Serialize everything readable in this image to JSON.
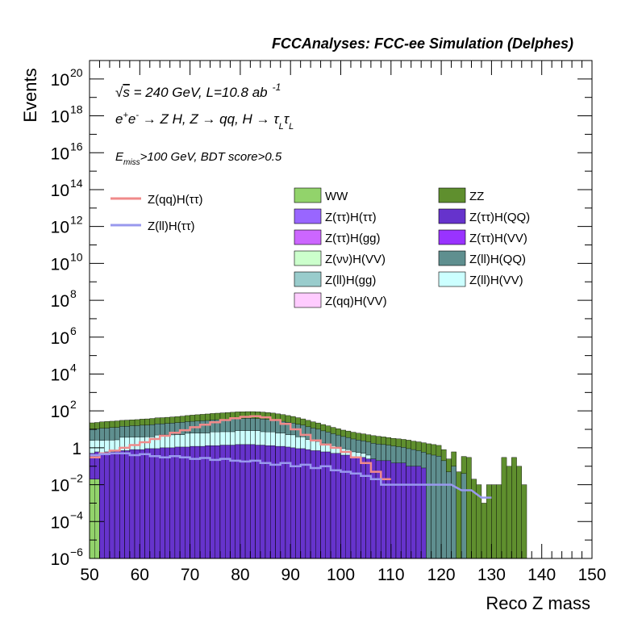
{
  "chart_data": {
    "type": "bar",
    "title": "FCCAnalyses: FCC-ee Simulation (Delphes)",
    "xlabel": "Reco Z mass",
    "ylabel": "Events",
    "xlim": [
      50,
      150
    ],
    "ylim_exp": [
      -6,
      21
    ],
    "log_y": true,
    "grid": false,
    "x_ticks": [
      "50",
      "60",
      "70",
      "80",
      "90",
      "100",
      "110",
      "120",
      "130",
      "140",
      "150"
    ],
    "y_ticks": [
      {
        "exp": -6,
        "base": "10",
        "sup": "−6"
      },
      {
        "exp": -4,
        "base": "10",
        "sup": "−4"
      },
      {
        "exp": -2,
        "base": "10",
        "sup": "−2"
      },
      {
        "exp": 0,
        "base": "1",
        "sup": ""
      },
      {
        "exp": 2,
        "base": "10",
        "sup": "2"
      },
      {
        "exp": 4,
        "base": "10",
        "sup": "4"
      },
      {
        "exp": 6,
        "base": "10",
        "sup": "6"
      },
      {
        "exp": 8,
        "base": "10",
        "sup": "8"
      },
      {
        "exp": 10,
        "base": "10",
        "sup": "10"
      },
      {
        "exp": 12,
        "base": "10",
        "sup": "12"
      },
      {
        "exp": 14,
        "base": "10",
        "sup": "14"
      },
      {
        "exp": 16,
        "base": "10",
        "sup": "16"
      },
      {
        "exp": 18,
        "base": "10",
        "sup": "18"
      },
      {
        "exp": 20,
        "base": "10",
        "sup": "20"
      }
    ],
    "annotations": {
      "line1_prefix": "√",
      "line1_s": "s",
      "line1_rest": " = 240 GeV, L=10.8 ab",
      "line1_sup": "-1",
      "line2_e1": "e",
      "line2_sup1": "+",
      "line2_e2": "e",
      "line2_sup2": "-",
      "line2_rest": " → Z H, Z  → qq, H  → τ",
      "line2_sub1": "L",
      "line2_tau": "τ",
      "line2_sub2": "L",
      "line3_e": "E",
      "line3_sub": "miss",
      "line3_rest": ">100 GeV, BDT score>0.5"
    },
    "legend_lines": [
      {
        "name": "Z(qq)H(ττ)",
        "color": "#f08a8a"
      },
      {
        "name": "Z(ll)H(ττ)",
        "color": "#9999ee"
      }
    ],
    "legend_fills": [
      {
        "name": "WW",
        "color": "#92d36b"
      },
      {
        "name": "ZZ",
        "color": "#5f8f2e"
      },
      {
        "name": "Z(ττ)H(ττ)",
        "color": "#9966ff"
      },
      {
        "name": "Z(ττ)H(QQ)",
        "color": "#6633cc"
      },
      {
        "name": "Z(ττ)H(gg)",
        "color": "#cc66ff"
      },
      {
        "name": "Z(ττ)H(VV)",
        "color": "#9933ff"
      },
      {
        "name": "Z(νν)H(VV)",
        "color": "#ccffcc"
      },
      {
        "name": "Z(ll)H(QQ)",
        "color": "#5f8f8f"
      },
      {
        "name": "Z(ll)H(gg)",
        "color": "#99cccc"
      },
      {
        "name": "Z(ll)H(VV)",
        "color": "#ccffff"
      },
      {
        "name": "Z(qq)H(VV)",
        "color": "#ffccff"
      }
    ],
    "bin_width": 1,
    "stacked_bins": [
      {
        "x": 50,
        "ZZ": 12,
        "Zll_QQ": 8,
        "Zll_VV": 2,
        "Ztt_QQ": 0.5,
        "WW": 0.02
      },
      {
        "x": 51,
        "ZZ": 13,
        "Zll_QQ": 8,
        "Zll_VV": 2,
        "Ztt_QQ": 0.6,
        "WW": 0.02
      },
      {
        "x": 52,
        "ZZ": 14,
        "Zll_QQ": 9,
        "Zll_VV": 2,
        "Ztt_QQ": 0.5
      },
      {
        "x": 53,
        "ZZ": 15,
        "Zll_QQ": 9,
        "Zll_VV": 2,
        "Ztt_QQ": 0.6
      },
      {
        "x": 54,
        "ZZ": 15,
        "Zll_QQ": 10,
        "Zll_VV": 2,
        "Ztt_QQ": 0.6
      },
      {
        "x": 55,
        "ZZ": 16,
        "Zll_QQ": 10,
        "Zll_VV": 2,
        "Ztt_QQ": 0.7
      },
      {
        "x": 56,
        "ZZ": 16,
        "Zll_QQ": 11,
        "Zll_VV": 3,
        "Ztt_QQ": 0.7
      },
      {
        "x": 57,
        "ZZ": 17,
        "Zll_QQ": 11,
        "Zll_VV": 3,
        "Ztt_QQ": 0.7
      },
      {
        "x": 58,
        "ZZ": 17,
        "Zll_QQ": 12,
        "Zll_VV": 3,
        "Ztt_QQ": 0.8
      },
      {
        "x": 59,
        "ZZ": 18,
        "Zll_QQ": 12,
        "Zll_VV": 3,
        "Ztt_QQ": 0.8
      },
      {
        "x": 60,
        "ZZ": 19,
        "Zll_QQ": 13,
        "Zll_VV": 3,
        "Ztt_QQ": 0.8
      },
      {
        "x": 61,
        "ZZ": 20,
        "Zll_QQ": 13,
        "Zll_VV": 3,
        "Ztt_QQ": 0.9
      },
      {
        "x": 62,
        "ZZ": 21,
        "Zll_QQ": 14,
        "Zll_VV": 3,
        "Ztt_QQ": 0.9
      },
      {
        "x": 63,
        "ZZ": 22,
        "Zll_QQ": 15,
        "Zll_VV": 4,
        "Ztt_QQ": 0.9
      },
      {
        "x": 64,
        "ZZ": 23,
        "Zll_QQ": 15,
        "Zll_VV": 4,
        "Ztt_QQ": 1.0
      },
      {
        "x": 65,
        "ZZ": 24,
        "Zll_QQ": 16,
        "Zll_VV": 4,
        "Ztt_QQ": 1.0
      },
      {
        "x": 66,
        "ZZ": 25,
        "Zll_QQ": 17,
        "Zll_VV": 4,
        "Ztt_QQ": 1.0
      },
      {
        "x": 67,
        "ZZ": 26,
        "Zll_QQ": 18,
        "Zll_VV": 4,
        "Ztt_QQ": 1.1
      },
      {
        "x": 68,
        "ZZ": 28,
        "Zll_QQ": 19,
        "Zll_VV": 4,
        "Ztt_QQ": 1.1
      },
      {
        "x": 69,
        "ZZ": 30,
        "Zll_QQ": 20,
        "Zll_VV": 5,
        "Ztt_QQ": 1.1
      },
      {
        "x": 70,
        "ZZ": 32,
        "Zll_QQ": 21,
        "Zll_VV": 5,
        "Ztt_QQ": 1.2
      },
      {
        "x": 71,
        "ZZ": 34,
        "Zll_QQ": 22,
        "Zll_VV": 5,
        "Ztt_QQ": 1.2
      },
      {
        "x": 72,
        "ZZ": 36,
        "Zll_QQ": 23,
        "Zll_VV": 5,
        "Ztt_QQ": 1.2
      },
      {
        "x": 73,
        "ZZ": 38,
        "Zll_QQ": 24,
        "Zll_VV": 5,
        "Ztt_QQ": 1.3
      },
      {
        "x": 74,
        "ZZ": 40,
        "Zll_QQ": 25,
        "Zll_VV": 6,
        "Ztt_QQ": 1.3
      },
      {
        "x": 75,
        "ZZ": 42,
        "Zll_QQ": 26,
        "Zll_VV": 6,
        "Ztt_QQ": 1.3
      },
      {
        "x": 76,
        "ZZ": 44,
        "Zll_QQ": 27,
        "Zll_VV": 6,
        "Ztt_QQ": 1.4
      },
      {
        "x": 77,
        "ZZ": 46,
        "Zll_QQ": 28,
        "Zll_VV": 6,
        "Ztt_QQ": 1.4
      },
      {
        "x": 78,
        "ZZ": 48,
        "Zll_QQ": 29,
        "Zll_VV": 6,
        "Ztt_QQ": 1.4
      },
      {
        "x": 79,
        "ZZ": 50,
        "Zll_QQ": 30,
        "Zll_VV": 7,
        "Ztt_QQ": 1.5
      },
      {
        "x": 80,
        "ZZ": 51,
        "Zll_QQ": 30,
        "Zll_VV": 7,
        "Ztt_QQ": 1.5
      },
      {
        "x": 81,
        "ZZ": 52,
        "Zll_QQ": 31,
        "Zll_VV": 7,
        "Ztt_QQ": 1.5
      },
      {
        "x": 82,
        "ZZ": 52,
        "Zll_QQ": 31,
        "Zll_VV": 7,
        "Ztt_QQ": 1.5
      },
      {
        "x": 83,
        "ZZ": 51,
        "Zll_QQ": 30,
        "Zll_VV": 7,
        "Ztt_QQ": 1.4
      },
      {
        "x": 84,
        "ZZ": 50,
        "Zll_QQ": 29,
        "Zll_VV": 6,
        "Ztt_QQ": 1.4
      },
      {
        "x": 85,
        "ZZ": 47,
        "Zll_QQ": 27,
        "Zll_VV": 6,
        "Ztt_QQ": 1.3
      },
      {
        "x": 86,
        "ZZ": 44,
        "Zll_QQ": 25,
        "Zll_VV": 6,
        "Ztt_QQ": 1.3
      },
      {
        "x": 87,
        "ZZ": 40,
        "Zll_QQ": 23,
        "Zll_VV": 5,
        "Ztt_QQ": 1.2
      },
      {
        "x": 88,
        "ZZ": 36,
        "Zll_QQ": 21,
        "Zll_VV": 5,
        "Ztt_QQ": 1.2
      },
      {
        "x": 89,
        "ZZ": 32,
        "Zll_QQ": 19,
        "Zll_VV": 4,
        "Ztt_QQ": 1.1
      },
      {
        "x": 90,
        "ZZ": 28,
        "Zll_QQ": 17,
        "Zll_VV": 4,
        "Ztt_QQ": 1.0
      },
      {
        "x": 91,
        "ZZ": 24,
        "Zll_QQ": 15,
        "Zll_VV": 3,
        "Ztt_QQ": 0.9
      },
      {
        "x": 92,
        "ZZ": 20,
        "Zll_QQ": 13,
        "Zll_VV": 3,
        "Ztt_QQ": 0.9
      },
      {
        "x": 93,
        "ZZ": 17,
        "Zll_QQ": 11,
        "Zll_VV": 2,
        "Ztt_QQ": 0.8
      },
      {
        "x": 94,
        "ZZ": 14,
        "Zll_QQ": 9,
        "Zll_VV": 2,
        "Ztt_QQ": 0.7
      },
      {
        "x": 95,
        "ZZ": 12,
        "Zll_QQ": 8,
        "Zll_VV": 1.5,
        "Ztt_QQ": 0.7
      },
      {
        "x": 96,
        "ZZ": 10,
        "Zll_QQ": 6.5,
        "Zll_VV": 1.2,
        "Ztt_QQ": 0.6
      },
      {
        "x": 97,
        "ZZ": 8.5,
        "Zll_QQ": 5.5,
        "Zll_VV": 1.0,
        "Ztt_QQ": 0.6
      },
      {
        "x": 98,
        "ZZ": 7,
        "Zll_QQ": 4.5,
        "Zll_VV": 0.8,
        "Ztt_QQ": 0.5
      },
      {
        "x": 99,
        "ZZ": 6,
        "Zll_QQ": 3.8,
        "Zll_VV": 0.6,
        "Ztt_QQ": 0.5
      },
      {
        "x": 100,
        "ZZ": 5,
        "Zll_QQ": 3.2,
        "Zll_VV": 0.5,
        "Ztt_QQ": 0.4
      },
      {
        "x": 101,
        "ZZ": 4.5,
        "Zll_QQ": 2.8,
        "Zll_VV": 0.4,
        "Ztt_QQ": 0.4
      },
      {
        "x": 102,
        "ZZ": 4,
        "Zll_QQ": 2.4,
        "Zll_VV": 0.3,
        "Ztt_QQ": 0.3
      },
      {
        "x": 103,
        "ZZ": 3.6,
        "Zll_QQ": 2.1,
        "Zll_VV": 0.25,
        "Ztt_QQ": 0.3
      },
      {
        "x": 104,
        "ZZ": 3.3,
        "Zll_QQ": 1.9,
        "Zll_VV": 0.2,
        "Ztt_QQ": 0.3
      },
      {
        "x": 105,
        "ZZ": 3.0,
        "Zll_QQ": 1.7,
        "Zll_VV": 0.15,
        "Ztt_QQ": 0.25
      },
      {
        "x": 106,
        "ZZ": 2.8,
        "Zll_QQ": 1.5,
        "Ztt_QQ": 0.25
      },
      {
        "x": 107,
        "ZZ": 2.6,
        "Zll_QQ": 1.4,
        "Ztt_QQ": 0.2
      },
      {
        "x": 108,
        "ZZ": 2.4,
        "Zll_QQ": 1.3,
        "Ztt_QQ": 0.2
      },
      {
        "x": 109,
        "ZZ": 2.2,
        "Zll_QQ": 1.2,
        "Ztt_QQ": 0.2
      },
      {
        "x": 110,
        "ZZ": 2.0,
        "Zll_QQ": 1.1,
        "Ztt_QQ": 0.15
      },
      {
        "x": 111,
        "ZZ": 1.9,
        "Zll_QQ": 1.0,
        "Ztt_QQ": 0.15
      },
      {
        "x": 112,
        "ZZ": 1.8,
        "Zll_QQ": 0.9,
        "Ztt_QQ": 0.15
      },
      {
        "x": 113,
        "ZZ": 1.7,
        "Zll_QQ": 0.8,
        "Ztt_QQ": 0.1
      },
      {
        "x": 114,
        "ZZ": 1.5,
        "Zll_QQ": 0.7,
        "Ztt_QQ": 0.1
      },
      {
        "x": 115,
        "ZZ": 1.4,
        "Zll_QQ": 0.6,
        "Ztt_QQ": 0.1
      },
      {
        "x": 116,
        "ZZ": 1.3,
        "Zll_QQ": 0.5,
        "Ztt_QQ": 0.08
      },
      {
        "x": 117,
        "ZZ": 1.2,
        "Zll_QQ": 0.45
      },
      {
        "x": 118,
        "ZZ": 1.1,
        "Zll_QQ": 0.4
      },
      {
        "x": 119,
        "ZZ": 1.0,
        "Zll_QQ": 0.35
      },
      {
        "x": 120,
        "ZZ": 0.6,
        "Zll_QQ": 0.2
      },
      {
        "x": 121,
        "ZZ": 0.2,
        "Zll_QQ": 0.05
      },
      {
        "x": 122,
        "ZZ": 0.5,
        "Zll_QQ": 0.1
      },
      {
        "x": 123,
        "ZZ": 0.05
      },
      {
        "x": 124,
        "ZZ": 0.3,
        "Zll_QQ": 0.04
      },
      {
        "x": 125,
        "ZZ": 0.3
      },
      {
        "x": 126,
        "ZZ": 0.02
      },
      {
        "x": 127,
        "ZZ": 0.01
      },
      {
        "x": 128,
        "ZZ": 0.001
      },
      {
        "x": 129,
        "ZZ": 0.01
      },
      {
        "x": 130,
        "ZZ": 0.01
      },
      {
        "x": 131,
        "ZZ": 0.01
      },
      {
        "x": 132,
        "ZZ": 0.3
      },
      {
        "x": 133,
        "ZZ": 0.1
      },
      {
        "x": 134,
        "ZZ": 0.3
      },
      {
        "x": 135,
        "ZZ": 0.1
      },
      {
        "x": 136,
        "ZZ": 0.01
      }
    ],
    "line_Zqq_Htt": [
      {
        "x": 50,
        "y": 0.3
      },
      {
        "x": 52,
        "y": 0.5
      },
      {
        "x": 54,
        "y": 0.7
      },
      {
        "x": 56,
        "y": 1.0
      },
      {
        "x": 58,
        "y": 1.4
      },
      {
        "x": 60,
        "y": 2.0
      },
      {
        "x": 62,
        "y": 3.0
      },
      {
        "x": 64,
        "y": 4.5
      },
      {
        "x": 66,
        "y": 6.5
      },
      {
        "x": 68,
        "y": 9
      },
      {
        "x": 70,
        "y": 13
      },
      {
        "x": 72,
        "y": 18
      },
      {
        "x": 74,
        "y": 24
      },
      {
        "x": 76,
        "y": 32
      },
      {
        "x": 78,
        "y": 40
      },
      {
        "x": 80,
        "y": 48
      },
      {
        "x": 82,
        "y": 52
      },
      {
        "x": 84,
        "y": 45
      },
      {
        "x": 86,
        "y": 32
      },
      {
        "x": 88,
        "y": 20
      },
      {
        "x": 90,
        "y": 10
      },
      {
        "x": 92,
        "y": 5
      },
      {
        "x": 94,
        "y": 2.5
      },
      {
        "x": 96,
        "y": 1.5
      },
      {
        "x": 98,
        "y": 1.0
      },
      {
        "x": 100,
        "y": 0.6
      },
      {
        "x": 102,
        "y": 0.3
      },
      {
        "x": 104,
        "y": 0.15
      },
      {
        "x": 106,
        "y": 0.05
      },
      {
        "x": 108,
        "y": 0.02
      }
    ],
    "line_Zll_Htt": [
      {
        "x": 50,
        "y": 0.4
      },
      {
        "x": 52,
        "y": 0.45
      },
      {
        "x": 54,
        "y": 0.5
      },
      {
        "x": 56,
        "y": 0.5
      },
      {
        "x": 58,
        "y": 0.4
      },
      {
        "x": 60,
        "y": 0.45
      },
      {
        "x": 62,
        "y": 0.35
      },
      {
        "x": 64,
        "y": 0.3
      },
      {
        "x": 66,
        "y": 0.35
      },
      {
        "x": 68,
        "y": 0.3
      },
      {
        "x": 70,
        "y": 0.25
      },
      {
        "x": 72,
        "y": 0.28
      },
      {
        "x": 74,
        "y": 0.22
      },
      {
        "x": 76,
        "y": 0.25
      },
      {
        "x": 78,
        "y": 0.2
      },
      {
        "x": 80,
        "y": 0.18
      },
      {
        "x": 82,
        "y": 0.2
      },
      {
        "x": 84,
        "y": 0.15
      },
      {
        "x": 86,
        "y": 0.12
      },
      {
        "x": 88,
        "y": 0.15
      },
      {
        "x": 90,
        "y": 0.1
      },
      {
        "x": 92,
        "y": 0.12
      },
      {
        "x": 94,
        "y": 0.08
      },
      {
        "x": 96,
        "y": 0.1
      },
      {
        "x": 98,
        "y": 0.06
      },
      {
        "x": 100,
        "y": 0.05
      },
      {
        "x": 102,
        "y": 0.04
      },
      {
        "x": 104,
        "y": 0.03
      },
      {
        "x": 106,
        "y": 0.02
      },
      {
        "x": 108,
        "y": 0.01
      },
      {
        "x": 112,
        "y": 0.01
      },
      {
        "x": 116,
        "y": 0.01
      },
      {
        "x": 120,
        "y": 0.01
      },
      {
        "x": 124,
        "y": 0.005
      },
      {
        "x": 128,
        "y": 0.002
      }
    ]
  }
}
